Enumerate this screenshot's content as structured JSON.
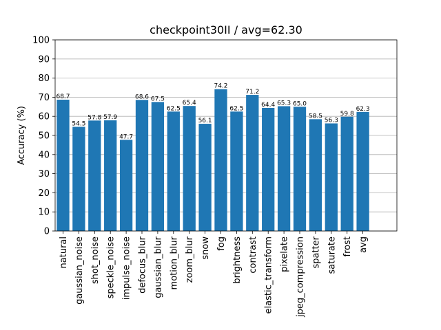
{
  "chart_data": {
    "type": "bar",
    "title": "checkpoint30II / avg=62.30",
    "xlabel": "",
    "ylabel": "Accuracy (%)",
    "ylim": [
      0,
      100
    ],
    "yticks": [
      0,
      10,
      20,
      30,
      40,
      50,
      60,
      70,
      80,
      90,
      100
    ],
    "grid": "horizontal",
    "bar_color": "#1f77b4",
    "categories": [
      "natural",
      "gaussian_noise",
      "shot_noise",
      "speckle_noise",
      "impulse_noise",
      "defocus_blur",
      "gaussian_blur",
      "motion_blur",
      "zoom_blur",
      "snow",
      "fog",
      "brightness",
      "contrast",
      "elastic_transform",
      "pixelate",
      "jpeg_compression",
      "spatter",
      "saturate",
      "frost",
      "avg"
    ],
    "values": [
      68.7,
      54.5,
      57.8,
      57.9,
      47.7,
      68.6,
      67.5,
      62.5,
      65.4,
      56.1,
      74.2,
      62.5,
      71.2,
      64.4,
      65.3,
      65.0,
      58.5,
      56.3,
      59.8,
      62.3
    ],
    "value_labels": [
      "68.7",
      "54.5",
      "57.8",
      "57.9",
      "47.7",
      "68.6",
      "67.5",
      "62.5",
      "65.4",
      "56.1",
      "74.2",
      "62.5",
      "71.2",
      "64.4",
      "65.3",
      "65.0",
      "58.5",
      "56.3",
      "59.8",
      "62.3"
    ]
  }
}
